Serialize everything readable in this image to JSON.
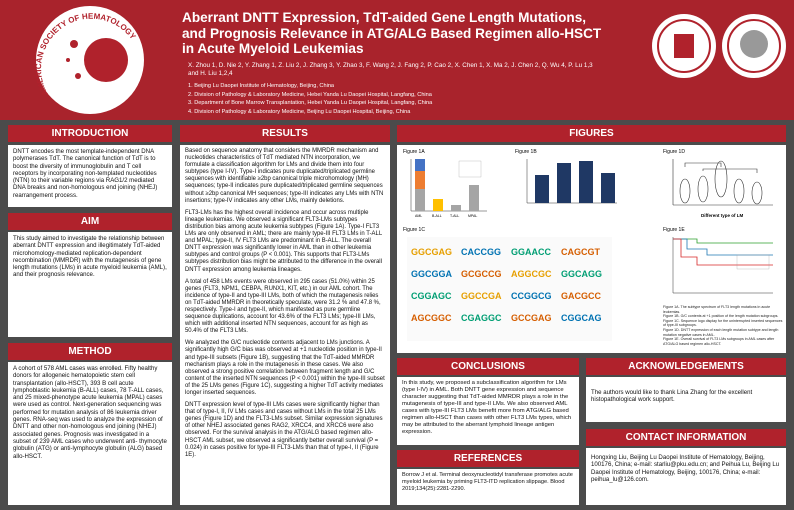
{
  "header": {
    "title": "Aberrant DNTT Expression, TdT-aided Gene Length Mutations, and Prognosis Relevance in ATG/ALG Based Regimen allo-HSCT in Acute Myeloid Leukemias",
    "authors": "X. Zhou 1, D. Nie 2, Y. Zhang 1, Z. Liu 2, J. Zhang 3, Y. Zhao 3, F. Wang 2, J. Fang 2, P. Cao 2, X. Chen 1, X. Ma 2, J. Chen 2, Q. Wu 4, P. Lu 1,3 and H. Liu 1,2,4",
    "affiliations": [
      "1. Beijing Lu Daopei Institute of Hematology, Beijing, China",
      "2. Division of Pathology & Laboratory Medicine, Hebei Yanda Lu Daopei Hospital, Langfang, China",
      "3. Department of Bone Marrow Transplantation, Hebei Yanda Lu Daopei Hospital, Langfang, China",
      "4. Division of Pathology & Laboratory Medicine, Beijing Lu Daopei Hospital, Beijing, China"
    ],
    "logo_text": "AMERICAN SOCIETY OF HEMATOLOGY"
  },
  "introduction": {
    "heading": "INTRODUCTION",
    "text": "DNTT encodes the most template-independent DNA polymerases TdT. The canonical function of TdT is to boost the diversity of immunoglobulin and T cell receptors by incorporating non-templated nucleotides (NTN) to their variable regions via RAG1/2 mediated DNA breaks and non-homologous end joining (NHEJ) rearrangement process."
  },
  "aim": {
    "heading": "AIM",
    "text": "This study aimed to investigate the relationship between aberrant DNTT expression and illegitimately TdT-aided microhomology-mediated replication-dependent recombination (MMRDR) with the mutagenesis of gene length mutations (LMs) in acute myeloid leukemia (AML), and their prognosis relevance."
  },
  "method": {
    "heading": "METHOD",
    "text": "A cohort of 578 AML cases was enrolled. Fifty healthy donors for allogeneic hematopoietic stem cell transplantation (allo-HSCT), 393 B cell acute lymphoblastic leukemia (B-ALL) cases, 78 T-ALL cases, and 25 mixed-phenotype acute leukemia (MPAL) cases were used as control. Next-generation sequencing was performed for mutation analysis of 86 leukemia driver genes. RNA-seq was used to analyze the expression of DNTT and other non-homologous end joining (NHEJ) associated genes. Prognosis was investigated in a subset of 239 AML cases who underwent anti- thymocyte globulin (ATG) or anti-lymphocyte globulin (ALG) based allo-HSCT."
  },
  "results": {
    "heading": "RESULTS",
    "paragraphs": [
      "Based on sequence anatomy that considers the MMRDR mechanism and nucleotides characteristics of TdT mediated NTN incorporation, we formulate a classification algorithm for LMs and divide them into four subtypes (type I-IV). Type-I indicates pure duplicated/triplicated germline sequences with identifiable ≥2bp canonical triple microhomology (MH) sequences; type-II indicates pure duplicated/triplicated germline sequences without ≥2bp canonical MH sequences; type-III indicates any LMs with NTN insertions; type-IV indicates any other LMs, mainly deletions.",
      "FLT3-LMs has the highest overall incidence and occur across multiple lineage leukemias. We observed a significant FLT3-LMs subtypes distribution bias among acute leukemia subtypes (Figure 1A). Type-I FLT3 LMs are only observed in AML; there are mainly type-III FLT3 LMs in T-ALL and MPAL; type-II, IV FLT3 LMs are predominant in B-ALL. The overall DNTT expression was significantly lower in AML than in other leukemia subtypes and control groups (P < 0.001). This supports that FLT3-LMs subtypes distribution bias might be attributed to the difference in the overall DNTT expression among leukemia lineages.",
      "A total of 458 LMs events were observed in 295 cases (51.0%) within 25 genes (FLT3, NPM1, CEBPA, RUNX1, KIT, etc.) in our AML cohort. The incidence of type-II and type-III LMs, both of which the mutagenesis relies on TdT-aided MMRDR in theoretically speculate, were 31.2 % and 47.8 %, respectively. Type-I and type-II, which manifested as pure germline sequence duplications, account for 43.6% of the FLT3 LMs; type-III LMs, which with additional inserted NTN sequences, account for as high as 50.4% of the FLT3 LMs.",
      "We analyzed the G/C nucleotide contents adjacent to LMs junctions. A significantly high G/C bias was observed at +1 nucleotide position in type-II and type-III subsets (Figure 1B), suggesting that the TdT-aided MMRDR mechanism plays a role in the mutagenesis in these cases. We also observed a strong positive correlation between fragment length and G/C content of the inserted NTN sequences (P < 0.001) within the type-III subset of the 25 LMs genes (Figure 1C), suggesting a higher TdT activity mediates longer inserted sequences.",
      "DNTT expression level of type-III LMs cases were significantly higher than that of type-I, II, IV LMs cases and cases without LMs in the total 25 LMs genes (Figure 1D) and the FLT3-LMs subset. Similar expression signatures of other NHEJ associated genes RAG2, XRCC4, and XRCC6 were also observed. For the survival analysis in the ATG/ALG based regimen allo-HSCT AML subset, we observed a significantly better overall survival (P = 0.024) in cases positive for type-III FLT3-LMs than that of type-I, II (Figure 1E)."
    ]
  },
  "figures": {
    "heading": "FIGURES",
    "panels": [
      "Figure 1A",
      "Figure 1B",
      "Figure 1C",
      "Figure 1D",
      "Figure 1E"
    ],
    "captions": [
      "Figure 1A. The subtype spectrum of FLT3 length mutations in acute leukemias.",
      "Figure 1B. G/C contents at +1 position of the length mutation subgroups.",
      "Figure 1C. Sequence logo display for the uninterrupted inserted sequences of type-III subgroups.",
      "Figure 1D. DNTT expression of each length mutation subtype and length mutation negative cases in AML.",
      "Figure 1E. Overall survival of FLT3 LMs subgroups in AML cases after ATG/ALG based regimen allo-HSCT."
    ],
    "labels_1a": [
      "AML",
      "B-ALL",
      "T-ALL",
      "MPAL"
    ],
    "label_1d": "Different type of LM"
  },
  "conclusions": {
    "heading": "CONCLUSIONS",
    "text": "In this study, we proposed a subclassification algorithm for LMs (type I-IV) in AML. Both DNTT gene expression and sequence character suggesting that TdT-aided MMRDR plays a role in the mutagenesis of type-III and type-II LMs. We also observed AML cases with type-III FLT3 LMs benefit more from ATG/ALG based regimen allo-HSCT than cases with other FLT3 LMs types, which may be attributed to the aberrant lymphoid lineage antigen expression."
  },
  "references": {
    "heading": "REFERENCES",
    "text": "Borrow J et al. Terminal deoxynucleotidyl transferase promotes acute myeloid leukemia by priming FLT3-ITD replication slippage. Blood 2019;134(25):2281-2290."
  },
  "acknowledgements": {
    "heading": "ACKNOWLEDGEMENTS",
    "text": "The authors would like to thank Lina Zhang for the excellent histopathological work support."
  },
  "contact": {
    "heading": "CONTACT INFORMATION",
    "text": "Hongxing Liu, Beijing Lu Daopei Institute of Hematology, Beijing, 100176, China; e-mail: starliu@pku.edu.cn; and Peihua Lu, Beijing Lu Daopei Institute of Hematology, Beijing, 100176, China; e-mail: peihua_lu@126.com."
  }
}
